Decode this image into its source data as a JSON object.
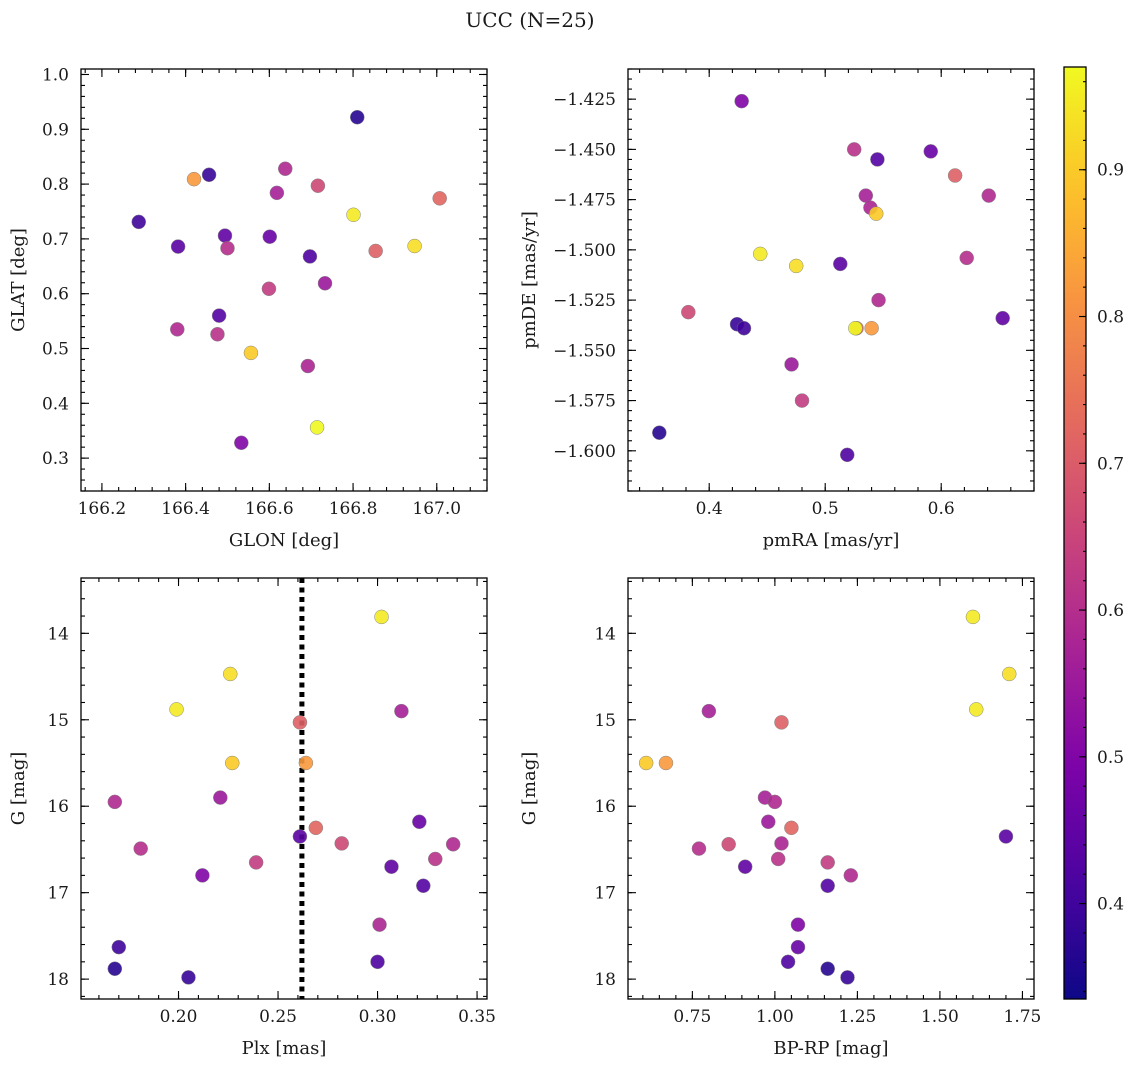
{
  "figure": {
    "title": "UCC (N=25)",
    "colormap": "plasma"
  },
  "colorbar": {
    "range": [
      0.335,
      0.97
    ],
    "ticks": [
      0.4,
      0.5,
      0.6,
      0.7,
      0.8,
      0.9
    ],
    "tick_labels": [
      "0.4",
      "0.5",
      "0.6",
      "0.7",
      "0.8",
      "0.9"
    ]
  },
  "chart_data": [
    {
      "type": "scatter",
      "xlabel": "GLON [deg]",
      "ylabel": "GLAT [deg]",
      "xlim": [
        166.15,
        167.12
      ],
      "ylim": [
        0.24,
        1.01
      ],
      "inverted_y": false,
      "xticks": [
        166.2,
        166.4,
        166.6,
        166.8,
        167.0
      ],
      "xtick_labels": [
        "166.2",
        "166.4",
        "166.6",
        "166.8",
        "167.0"
      ],
      "yticks": [
        0.3,
        0.4,
        0.5,
        0.6,
        0.7,
        0.8,
        0.9,
        1.0
      ],
      "ytick_labels": [
        "0.3",
        "0.4",
        "0.5",
        "0.6",
        "0.7",
        "0.8",
        "0.9",
        "1.0"
      ],
      "x": [
        166.81,
        166.456,
        166.288,
        166.382,
        166.494,
        166.601,
        166.697,
        166.733,
        166.48,
        166.38,
        166.476,
        166.599,
        166.533,
        166.692,
        166.638,
        166.618,
        166.716,
        166.5,
        166.854,
        166.42,
        167.007,
        166.556,
        166.801,
        166.947,
        166.714
      ],
      "y": [
        0.922,
        0.817,
        0.731,
        0.686,
        0.706,
        0.704,
        0.668,
        0.619,
        0.56,
        0.535,
        0.526,
        0.609,
        0.328,
        0.468,
        0.828,
        0.784,
        0.797,
        0.683,
        0.678,
        0.809,
        0.774,
        0.492,
        0.744,
        0.687,
        0.356
      ],
      "color": [
        0.37,
        0.39,
        0.4,
        0.44,
        0.45,
        0.46,
        0.42,
        0.55,
        0.43,
        0.59,
        0.61,
        0.63,
        0.5,
        0.58,
        0.59,
        0.57,
        0.66,
        0.6,
        0.71,
        0.82,
        0.72,
        0.9,
        0.95,
        0.93,
        0.97
      ]
    },
    {
      "type": "scatter",
      "xlabel": "pmRA [mas/yr]",
      "ylabel": "pmDE [mas/yr]",
      "xlim": [
        0.33,
        0.68
      ],
      "ylim": [
        -1.62,
        -1.41
      ],
      "inverted_y": false,
      "xticks": [
        0.4,
        0.5,
        0.6
      ],
      "xtick_labels": [
        "0.4",
        "0.5",
        "0.6"
      ],
      "yticks": [
        -1.6,
        -1.575,
        -1.55,
        -1.525,
        -1.5,
        -1.475,
        -1.45,
        -1.425
      ],
      "ytick_labels": [
        "−1.600",
        "−1.575",
        "−1.550",
        "−1.525",
        "−1.500",
        "−1.475",
        "−1.450",
        "−1.425"
      ],
      "x": [
        0.357,
        0.424,
        0.43,
        0.519,
        0.545,
        0.513,
        0.653,
        0.591,
        0.428,
        0.471,
        0.535,
        0.539,
        0.641,
        0.546,
        0.622,
        0.525,
        0.48,
        0.382,
        0.612,
        0.527,
        0.54,
        0.544,
        0.444,
        0.475,
        0.526
      ],
      "y": [
        -1.591,
        -1.537,
        -1.539,
        -1.602,
        -1.455,
        -1.507,
        -1.534,
        -1.451,
        -1.426,
        -1.557,
        -1.473,
        -1.479,
        -1.473,
        -1.525,
        -1.504,
        -1.45,
        -1.575,
        -1.531,
        -1.463,
        -1.539,
        -1.539,
        -1.482,
        -1.502,
        -1.508,
        -1.539
      ],
      "color": [
        0.37,
        0.39,
        0.4,
        0.42,
        0.43,
        0.44,
        0.45,
        0.46,
        0.5,
        0.55,
        0.57,
        0.58,
        0.59,
        0.59,
        0.6,
        0.61,
        0.63,
        0.66,
        0.71,
        0.72,
        0.82,
        0.9,
        0.95,
        0.93,
        0.97
      ]
    },
    {
      "type": "scatter",
      "xlabel": "Plx [mas]",
      "ylabel": "G [mag]",
      "xlim": [
        0.151,
        0.355
      ],
      "ylim": [
        18.23,
        13.36
      ],
      "inverted_y": true,
      "xticks": [
        0.2,
        0.25,
        0.3,
        0.35
      ],
      "xtick_labels": [
        "0.20",
        "0.25",
        "0.30",
        "0.35"
      ],
      "yticks": [
        14,
        15,
        16,
        17,
        18
      ],
      "ytick_labels": [
        "14",
        "15",
        "16",
        "17",
        "18"
      ],
      "vline": 0.262,
      "x": [
        0.168,
        0.17,
        0.205,
        0.3,
        0.261,
        0.323,
        0.307,
        0.321,
        0.212,
        0.221,
        0.312,
        0.301,
        0.168,
        0.181,
        0.239,
        0.282,
        0.329,
        0.338,
        0.269,
        0.261,
        0.264,
        0.226,
        0.199,
        0.302,
        0.227
      ],
      "y": [
        17.88,
        17.63,
        17.98,
        17.8,
        16.35,
        16.92,
        16.7,
        16.18,
        16.8,
        15.9,
        14.9,
        17.37,
        15.95,
        16.49,
        16.65,
        16.43,
        16.61,
        16.44,
        16.25,
        15.03,
        15.5,
        14.47,
        14.88,
        13.81,
        15.5
      ],
      "color": [
        0.37,
        0.4,
        0.39,
        0.42,
        0.44,
        0.43,
        0.45,
        0.46,
        0.5,
        0.55,
        0.57,
        0.58,
        0.59,
        0.6,
        0.63,
        0.66,
        0.61,
        0.59,
        0.72,
        0.71,
        0.82,
        0.93,
        0.95,
        0.95,
        0.9
      ]
    },
    {
      "type": "scatter",
      "xlabel": "BP-RP [mag]",
      "ylabel": "G [mag]",
      "xlim": [
        0.555,
        1.785
      ],
      "ylim": [
        18.23,
        13.36
      ],
      "inverted_y": true,
      "xticks": [
        0.75,
        1.0,
        1.25,
        1.5,
        1.75
      ],
      "xtick_labels": [
        "0.75",
        "1.00",
        "1.25",
        "1.50",
        "1.75"
      ],
      "yticks": [
        14,
        15,
        16,
        17,
        18
      ],
      "ytick_labels": [
        "14",
        "15",
        "16",
        "17",
        "18"
      ],
      "x": [
        1.7,
        1.22,
        1.16,
        1.04,
        1.16,
        0.91,
        1.07,
        1.07,
        0.98,
        0.97,
        0.8,
        1.0,
        1.02,
        1.01,
        0.86,
        0.77,
        1.16,
        1.23,
        1.05,
        1.02,
        0.67,
        0.61,
        1.61,
        1.71,
        1.6
      ],
      "y": [
        16.35,
        17.98,
        17.88,
        17.8,
        16.92,
        16.7,
        17.63,
        17.37,
        16.18,
        15.9,
        14.9,
        15.95,
        16.43,
        16.61,
        16.44,
        16.49,
        16.65,
        16.8,
        16.25,
        15.03,
        15.5,
        15.5,
        14.88,
        14.47,
        13.81
      ],
      "color": [
        0.44,
        0.39,
        0.37,
        0.42,
        0.43,
        0.45,
        0.46,
        0.5,
        0.55,
        0.57,
        0.57,
        0.59,
        0.58,
        0.61,
        0.66,
        0.6,
        0.63,
        0.59,
        0.72,
        0.71,
        0.82,
        0.9,
        0.95,
        0.93,
        0.95
      ]
    }
  ]
}
